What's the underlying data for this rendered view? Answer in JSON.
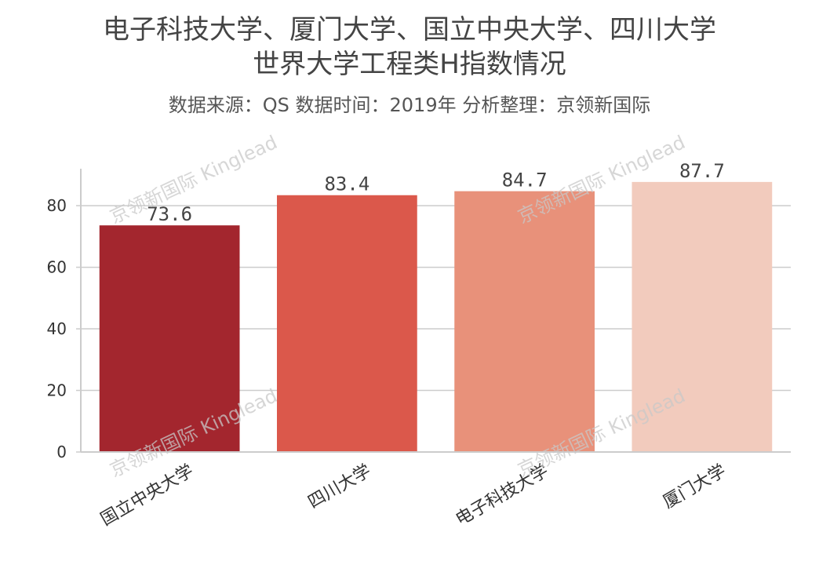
{
  "title_line1": "电子科技大学、厦门大学、国立中央大学、四川大学",
  "title_line2": "世界大学工程类H指数情况",
  "subtitle": "数据来源：QS 数据时间：2019年 分析整理：京领新国际",
  "watermark": "京领新国际 Kinglead",
  "chart_data": {
    "type": "bar",
    "title": "电子科技大学、厦门大学、国立中央大学、四川大学世界大学工程类H指数情况",
    "subtitle": "数据来源：QS 数据时间：2019年 分析整理：京领新国际",
    "categories": [
      "国立中央大学",
      "四川大学",
      "电子科技大学",
      "厦门大学"
    ],
    "values": [
      73.6,
      83.4,
      84.7,
      87.7
    ],
    "data_labels": [
      "73.6",
      "83.4",
      "84.7",
      "87.7"
    ],
    "colors": [
      "#a3262e",
      "#db584b",
      "#e8917a",
      "#f2cbbd"
    ],
    "xlabel": "",
    "ylabel": "",
    "ylim": [
      0,
      92
    ],
    "yticks": [
      0,
      20,
      40,
      60,
      80
    ],
    "grid": "horizontal",
    "legend": "none"
  }
}
